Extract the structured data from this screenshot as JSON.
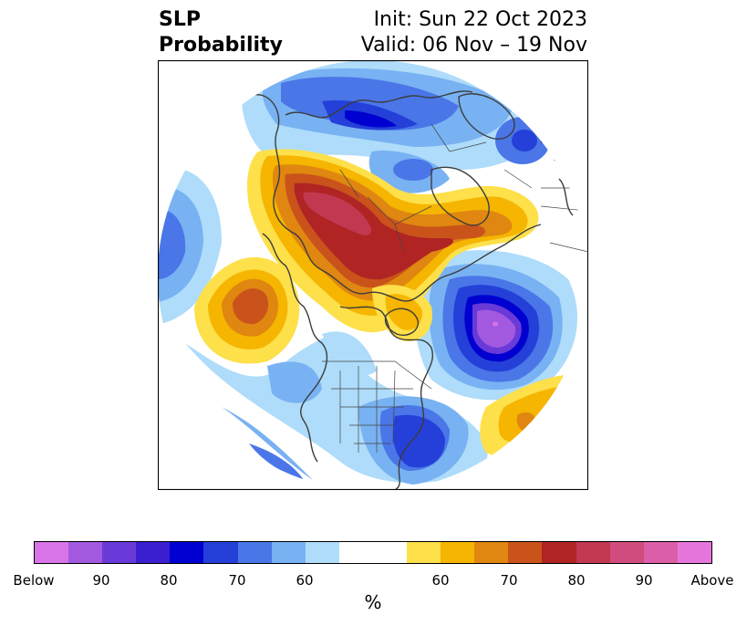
{
  "title": {
    "left_line1": "SLP",
    "left_line2": "Probability",
    "init": "Init: Sun 22 Oct 2023",
    "valid": "Valid: 06 Nov – 19 Nov"
  },
  "colorbar": {
    "label": "%",
    "ticks": [
      "Below",
      "90",
      "80",
      "70",
      "60",
      "60",
      "70",
      "80",
      "90",
      "Above"
    ],
    "below_colors": [
      "#d874e8",
      "#a259e0",
      "#6a3ad8",
      "#3a1fd0",
      "#0000d0",
      "#2440d8",
      "#4a76e8",
      "#78b2f2",
      "#aedcfa"
    ],
    "neutral_color": "#ffffff",
    "above_colors": [
      "#fde04a",
      "#f5b500",
      "#df8710",
      "#c9531a",
      "#b02424",
      "#c23850",
      "#d14c7e",
      "#dc5ea8",
      "#e676dc"
    ]
  }
}
